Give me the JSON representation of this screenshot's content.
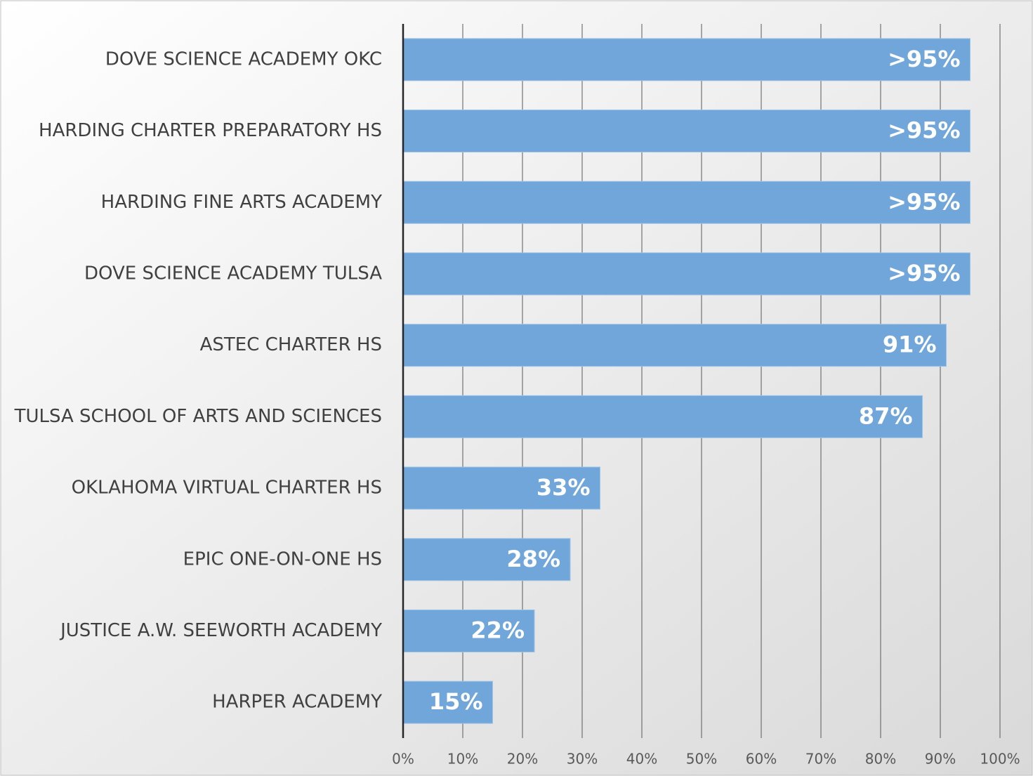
{
  "chart_data": {
    "type": "bar",
    "orientation": "horizontal",
    "categories": [
      "DOVE SCIENCE ACADEMY OKC",
      "HARDING CHARTER PREPARATORY HS",
      "HARDING FINE ARTS ACADEMY",
      "DOVE SCIENCE ACADEMY TULSA",
      "ASTEC CHARTER HS",
      "TULSA SCHOOL OF ARTS AND SCIENCES",
      "OKLAHOMA VIRTUAL CHARTER HS",
      "EPIC ONE-ON-ONE HS",
      "JUSTICE A.W. SEEWORTH ACADEMY",
      "HARPER ACADEMY"
    ],
    "values": [
      95,
      95,
      95,
      95,
      91,
      87,
      33,
      28,
      22,
      15
    ],
    "value_labels": [
      ">95%",
      ">95%",
      ">95%",
      ">95%",
      "91%",
      "87%",
      "33%",
      "28%",
      "22%",
      "15%"
    ],
    "color": "#71a6db",
    "xlim": [
      0,
      100
    ],
    "xticks": [
      {
        "value": 0,
        "label": "0%"
      },
      {
        "value": 10,
        "label": "10%"
      },
      {
        "value": 20,
        "label": "20%"
      },
      {
        "value": 30,
        "label": "30%"
      },
      {
        "value": 40,
        "label": "40%"
      },
      {
        "value": 50,
        "label": "50%"
      },
      {
        "value": 60,
        "label": "60%"
      },
      {
        "value": 70,
        "label": "70%"
      },
      {
        "value": 80,
        "label": "80%"
      },
      {
        "value": 90,
        "label": "90%"
      },
      {
        "value": 100,
        "label": "100%"
      }
    ],
    "grid": true
  }
}
